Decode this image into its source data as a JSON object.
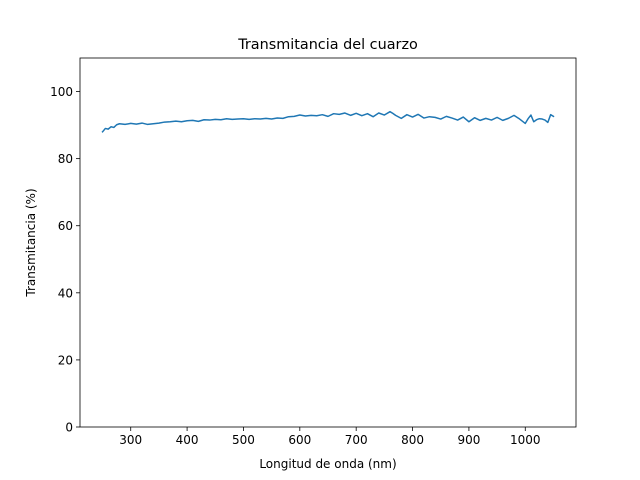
{
  "chart_data": {
    "type": "line",
    "title": "Transmitancia del cuarzo",
    "xlabel": "Longitud de onda (nm)",
    "ylabel": "Transmitancia (%)",
    "xlim": [
      210,
      1090
    ],
    "ylim": [
      0,
      110
    ],
    "xticks": [
      300,
      400,
      500,
      600,
      700,
      800,
      900,
      1000
    ],
    "yticks": [
      0,
      20,
      40,
      60,
      80,
      100
    ],
    "grid": false,
    "series": [
      {
        "color": "#1f77b4",
        "x": [
          250,
          255,
          260,
          265,
          270,
          275,
          280,
          290,
          300,
          310,
          320,
          330,
          340,
          350,
          360,
          370,
          380,
          390,
          400,
          410,
          420,
          430,
          440,
          450,
          460,
          470,
          480,
          490,
          500,
          510,
          520,
          530,
          540,
          550,
          560,
          570,
          580,
          590,
          600,
          610,
          620,
          630,
          640,
          650,
          660,
          670,
          680,
          690,
          700,
          710,
          720,
          730,
          740,
          750,
          760,
          765,
          770,
          780,
          790,
          800,
          810,
          820,
          830,
          840,
          850,
          860,
          870,
          880,
          890,
          900,
          910,
          920,
          930,
          940,
          950,
          960,
          970,
          980,
          990,
          1000,
          1005,
          1010,
          1015,
          1020,
          1025,
          1030,
          1035,
          1040,
          1045,
          1050
        ],
        "y": [
          88.0,
          89.0,
          88.8,
          89.5,
          89.3,
          90.1,
          90.4,
          90.2,
          90.5,
          90.3,
          90.6,
          90.2,
          90.4,
          90.6,
          90.9,
          91.0,
          91.2,
          91.0,
          91.3,
          91.4,
          91.1,
          91.6,
          91.5,
          91.7,
          91.6,
          91.9,
          91.7,
          91.8,
          91.9,
          91.7,
          91.9,
          91.8,
          92.0,
          91.8,
          92.1,
          92.0,
          92.5,
          92.6,
          93.0,
          92.7,
          92.9,
          92.8,
          93.1,
          92.6,
          93.4,
          93.2,
          93.6,
          92.9,
          93.5,
          92.8,
          93.4,
          92.5,
          93.6,
          93.0,
          94.0,
          93.5,
          92.9,
          92.0,
          93.1,
          92.4,
          93.2,
          92.1,
          92.5,
          92.3,
          91.8,
          92.6,
          92.1,
          91.5,
          92.4,
          91.0,
          92.2,
          91.4,
          92.0,
          91.5,
          92.3,
          91.4,
          92.0,
          92.9,
          91.8,
          90.5,
          91.9,
          93.0,
          91.0,
          91.6,
          91.9,
          91.8,
          91.5,
          90.8,
          93.1,
          92.6
        ]
      }
    ]
  }
}
